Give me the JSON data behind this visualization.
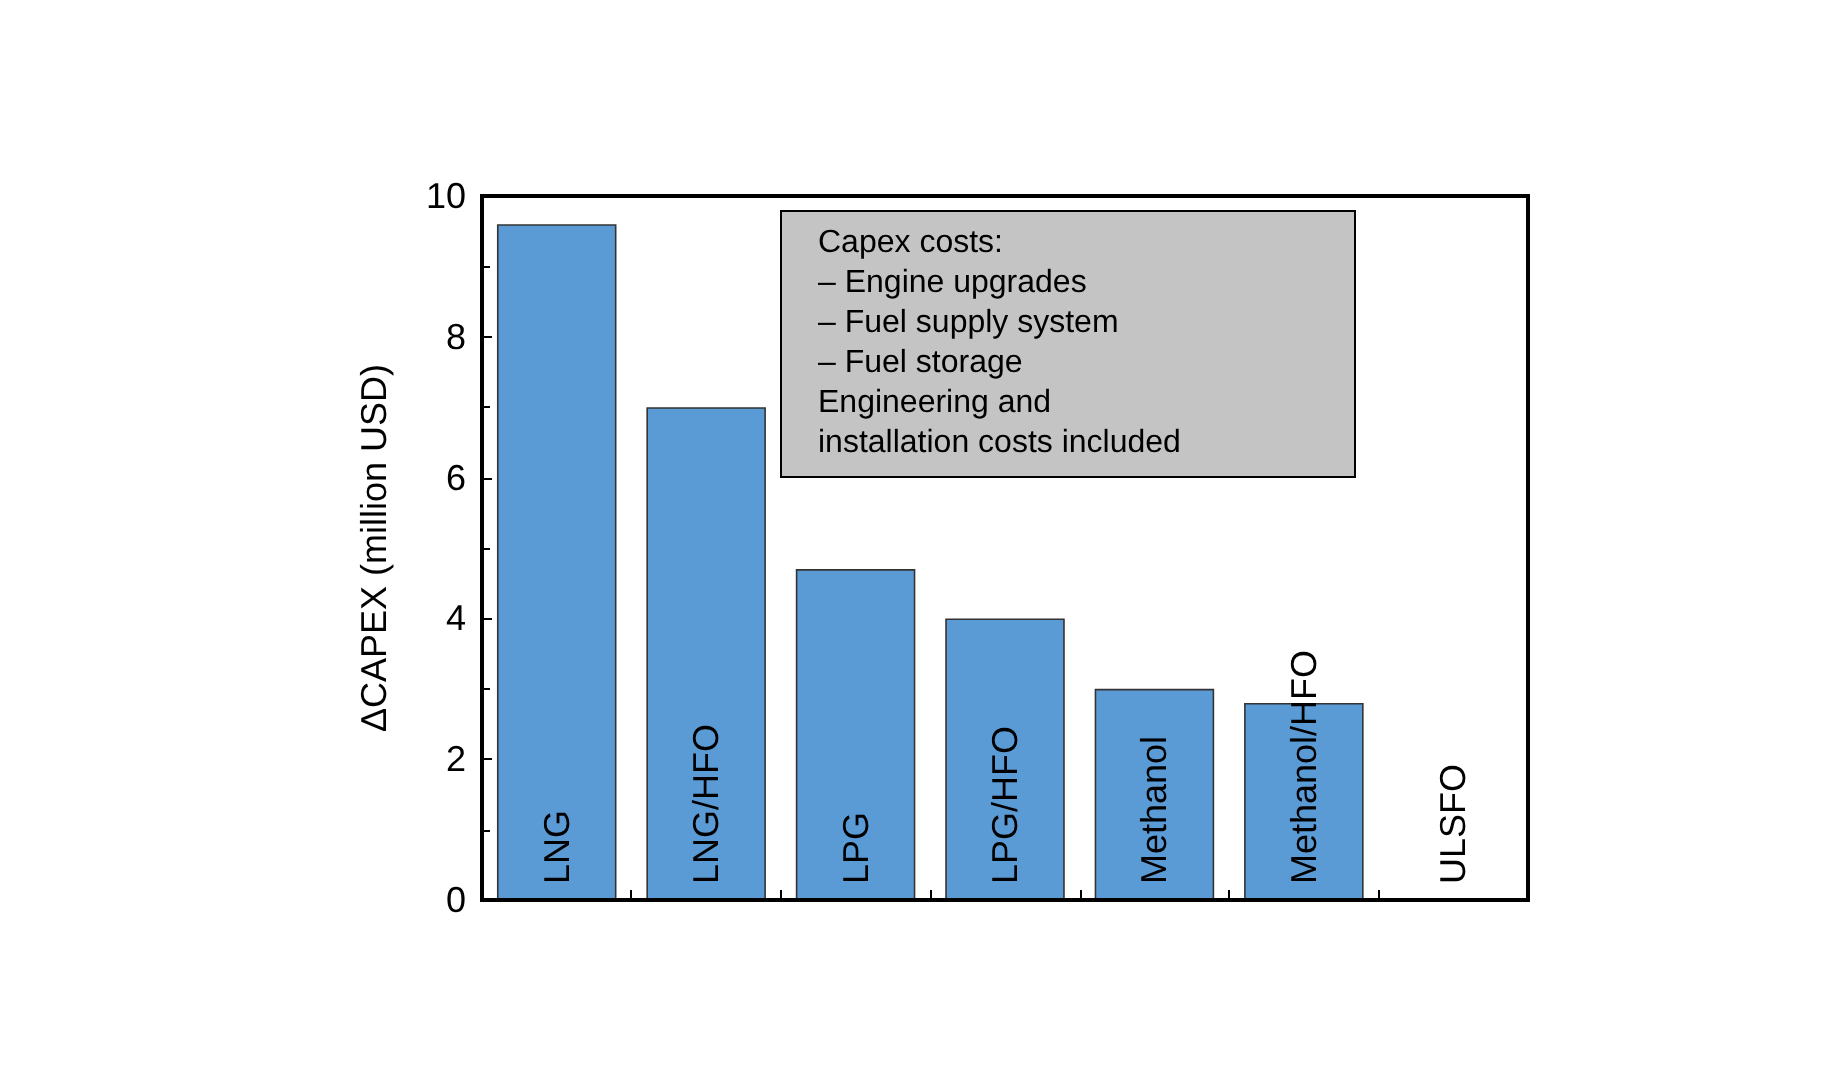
{
  "chart_data": {
    "type": "bar",
    "ylabel": "ΔCAPEX (million USD)",
    "categories": [
      "LNG",
      "LNG/HFO",
      "LPG",
      "LPG/HFO",
      "Methanol",
      "Methanol/HFO",
      "ULSFO"
    ],
    "values": [
      9.6,
      7.0,
      4.7,
      4.0,
      3.0,
      2.8,
      0
    ],
    "color": "#5b9bd5",
    "ylim": [
      0,
      10
    ],
    "yticks": [
      0,
      2,
      4,
      6,
      8,
      10
    ],
    "grid": false,
    "annotations": [
      "Capex costs:\n–  Engine upgrades\n–  Fuel supply system\n–  Fuel storage\nEngineering and\ninstallation costs included"
    ]
  }
}
